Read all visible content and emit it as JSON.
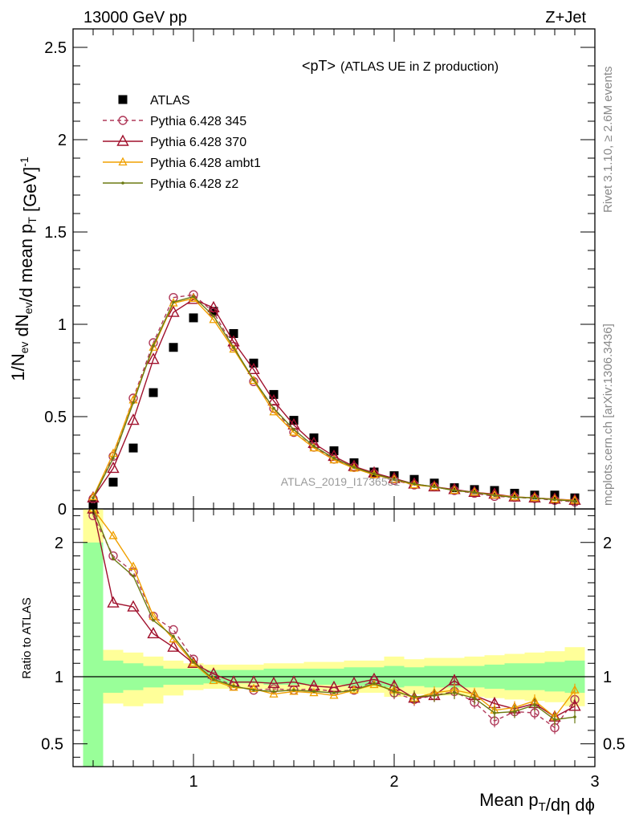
{
  "header": {
    "left": "13000 GeV pp",
    "right": "Z+Jet"
  },
  "side_labels": {
    "rivet": "Rivet 3.1.10, ≥ 2.6M events",
    "source": "mcplots.cern.ch [arXiv:1306.3436]"
  },
  "watermark": "ATLAS_2019_I1736531",
  "chart_data": [
    {
      "type": "scatter",
      "title": "<pT> (ATLAS UE in Z production)",
      "title_main": "<pT>",
      "title_sub": "(ATLAS UE in Z production)",
      "ylabel": "1/N_ev dN_ev/d mean p_T [GeV]^-1",
      "xlim": [
        0.4,
        3.0
      ],
      "ylim": [
        0,
        2.6
      ],
      "yticks": [
        0,
        0.5,
        1,
        1.5,
        2,
        2.5
      ],
      "ytick_labels": [
        "0",
        "0.5",
        "1",
        "1.5",
        "2",
        "2.5"
      ],
      "legend_position": "top-left",
      "x": [
        0.5,
        0.6,
        0.7,
        0.8,
        0.9,
        1.0,
        1.1,
        1.2,
        1.3,
        1.4,
        1.5,
        1.6,
        1.7,
        1.8,
        1.9,
        2.0,
        2.1,
        2.2,
        2.3,
        2.4,
        2.5,
        2.6,
        2.7,
        2.8,
        2.9
      ],
      "series": [
        {
          "name": "ATLAS",
          "color": "#000000",
          "marker": "square",
          "values": [
            0.025,
            0.145,
            0.33,
            0.63,
            0.875,
            1.035,
            1.07,
            0.95,
            0.79,
            0.62,
            0.48,
            0.385,
            0.315,
            0.25,
            0.2,
            0.18,
            0.16,
            0.14,
            0.115,
            0.105,
            0.1,
            0.085,
            0.075,
            0.075,
            0.06
          ]
        },
        {
          "name": "Pythia 6.428 345",
          "color": "#b03a5a",
          "marker": "circle",
          "dash": "5,4",
          "values": [
            0.055,
            0.285,
            0.6,
            0.9,
            1.145,
            1.16,
            1.065,
            0.88,
            0.69,
            0.545,
            0.415,
            0.335,
            0.27,
            0.225,
            0.19,
            0.155,
            0.13,
            0.12,
            0.1,
            0.085,
            0.068,
            0.063,
            0.057,
            0.047,
            0.038
          ]
        },
        {
          "name": "Pythia 6.428 370",
          "color": "#a0102c",
          "marker": "triangle-open",
          "values": [
            0.06,
            0.22,
            0.48,
            0.81,
            1.065,
            1.135,
            1.09,
            0.905,
            0.755,
            0.585,
            0.455,
            0.355,
            0.285,
            0.23,
            0.195,
            0.165,
            0.135,
            0.12,
            0.105,
            0.09,
            0.08,
            0.065,
            0.06,
            0.053,
            0.047
          ]
        },
        {
          "name": "Pythia 6.428 ambt1",
          "color": "#f0a000",
          "marker": "triangle-small",
          "values": [
            0.065,
            0.3,
            0.59,
            0.875,
            1.115,
            1.14,
            1.025,
            0.865,
            0.695,
            0.525,
            0.415,
            0.33,
            0.265,
            0.22,
            0.185,
            0.16,
            0.13,
            0.12,
            0.1,
            0.09,
            0.075,
            0.065,
            0.06,
            0.052,
            0.046
          ]
        },
        {
          "name": "Pythia 6.428 z2",
          "color": "#6b7a12",
          "marker": "dot",
          "values": [
            0.06,
            0.275,
            0.575,
            0.885,
            1.12,
            1.15,
            1.045,
            0.875,
            0.7,
            0.545,
            0.43,
            0.34,
            0.275,
            0.225,
            0.19,
            0.16,
            0.135,
            0.12,
            0.1,
            0.09,
            0.073,
            0.063,
            0.06,
            0.05,
            0.042
          ]
        }
      ]
    },
    {
      "type": "scatter",
      "title": "",
      "xlabel": "Mean p_T/dη dϕ",
      "ylabel": "Ratio to ATLAS",
      "xlim": [
        0.4,
        3.0
      ],
      "ylim": [
        0.33,
        2.25
      ],
      "yticks": [
        0.5,
        1,
        2
      ],
      "ytick_labels": [
        "0.5",
        "1",
        "2"
      ],
      "xticks": [
        1,
        2,
        3
      ],
      "xtick_labels": [
        "1",
        "2",
        "3"
      ],
      "reference_line": 1,
      "x": [
        0.5,
        0.6,
        0.7,
        0.8,
        0.9,
        1.0,
        1.1,
        1.2,
        1.3,
        1.4,
        1.5,
        1.6,
        1.7,
        1.8,
        1.9,
        2.0,
        2.1,
        2.2,
        2.3,
        2.4,
        2.5,
        2.6,
        2.7,
        2.8,
        2.9
      ],
      "bands": {
        "edges": [
          0.45,
          0.55,
          0.65,
          0.75,
          0.85,
          0.95,
          1.05,
          1.15,
          1.25,
          1.35,
          1.45,
          1.55,
          1.65,
          1.75,
          1.85,
          1.95,
          2.05,
          2.15,
          2.25,
          2.35,
          2.45,
          2.55,
          2.65,
          2.75,
          2.85,
          2.95
        ],
        "green_up": [
          2.0,
          1.12,
          1.1,
          1.08,
          1.06,
          1.06,
          1.05,
          1.05,
          1.05,
          1.06,
          1.06,
          1.06,
          1.06,
          1.07,
          1.07,
          1.08,
          1.07,
          1.08,
          1.08,
          1.08,
          1.09,
          1.1,
          1.1,
          1.11,
          1.12
        ],
        "green_down": [
          0.33,
          0.88,
          0.9,
          0.92,
          0.94,
          0.94,
          0.95,
          0.95,
          0.95,
          0.94,
          0.94,
          0.94,
          0.94,
          0.93,
          0.93,
          0.92,
          0.93,
          0.92,
          0.92,
          0.92,
          0.91,
          0.9,
          0.9,
          0.89,
          0.88
        ],
        "yellow_up": [
          2.25,
          1.2,
          1.18,
          1.15,
          1.12,
          1.1,
          1.09,
          1.09,
          1.09,
          1.1,
          1.1,
          1.11,
          1.11,
          1.12,
          1.12,
          1.15,
          1.13,
          1.14,
          1.14,
          1.15,
          1.16,
          1.17,
          1.18,
          1.19,
          1.22
        ],
        "yellow_down": [
          0.33,
          0.8,
          0.78,
          0.8,
          0.86,
          0.9,
          0.91,
          0.91,
          0.91,
          0.9,
          0.9,
          0.89,
          0.89,
          0.88,
          0.88,
          0.85,
          0.87,
          0.86,
          0.86,
          0.85,
          0.84,
          0.83,
          0.82,
          0.81,
          0.78
        ]
      },
      "series": [
        {
          "name": "Pythia 6.428 345",
          "color": "#b03a5a",
          "marker": "circle",
          "dash": "5,4",
          "values": [
            2.2,
            1.9,
            1.78,
            1.45,
            1.35,
            1.13,
            1.0,
            0.93,
            0.9,
            0.91,
            0.9,
            0.91,
            0.89,
            0.9,
            0.97,
            0.88,
            0.83,
            0.86,
            0.89,
            0.81,
            0.67,
            0.74,
            0.73,
            0.62,
            0.83
          ]
        },
        {
          "name": "Pythia 6.428 370",
          "color": "#a0102c",
          "marker": "triangle-open",
          "values": [
            2.25,
            1.55,
            1.52,
            1.32,
            1.22,
            1.1,
            1.02,
            0.96,
            0.96,
            0.95,
            0.96,
            0.93,
            0.92,
            0.95,
            0.98,
            0.93,
            0.84,
            0.86,
            0.97,
            0.86,
            0.8,
            0.76,
            0.8,
            0.7,
            0.78
          ]
        },
        {
          "name": "Pythia 6.428 ambt1",
          "color": "#f0a000",
          "marker": "triangle-small",
          "values": [
            2.25,
            2.05,
            1.82,
            1.45,
            1.28,
            1.1,
            0.97,
            0.92,
            0.91,
            0.87,
            0.89,
            0.88,
            0.86,
            0.9,
            0.94,
            0.9,
            0.84,
            0.88,
            0.9,
            0.87,
            0.75,
            0.77,
            0.82,
            0.7,
            0.9
          ]
        },
        {
          "name": "Pythia 6.428 z2",
          "color": "#6b7a12",
          "marker": "dot",
          "values": [
            2.25,
            1.88,
            1.75,
            1.42,
            1.3,
            1.11,
            0.98,
            0.93,
            0.9,
            0.89,
            0.9,
            0.89,
            0.88,
            0.9,
            0.95,
            0.89,
            0.85,
            0.86,
            0.88,
            0.84,
            0.73,
            0.74,
            0.79,
            0.68,
            0.7
          ]
        }
      ]
    }
  ]
}
